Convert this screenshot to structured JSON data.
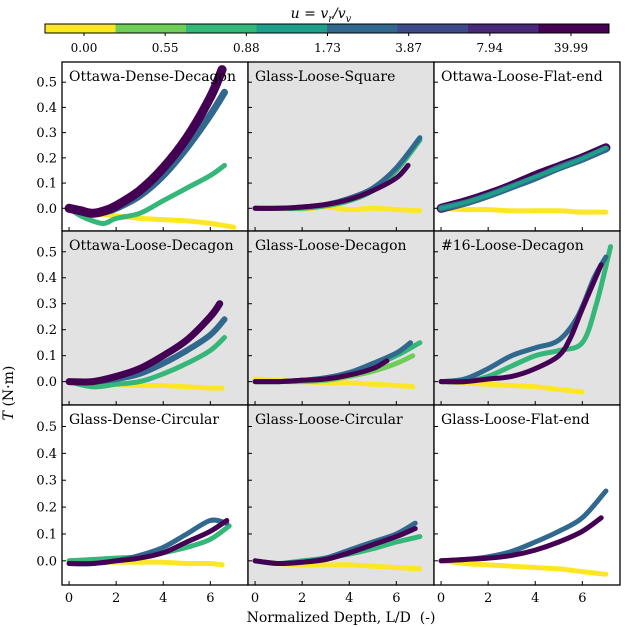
{
  "colorbar": {
    "label": "u = v_r / v_v",
    "label_parts": {
      "base": "u = v",
      "sub1": "r",
      "slash": "/v",
      "sub2": "v"
    },
    "ticks": [
      "0.00",
      "0.55",
      "0.88",
      "1.73",
      "3.87",
      "7.94",
      "39.99"
    ],
    "colors": [
      "#fde725",
      "#6ece58",
      "#35b779",
      "#1f9e89",
      "#31688e",
      "#3e4989",
      "#482878",
      "#440154"
    ]
  },
  "axes": {
    "ylabel": "T (N·m)",
    "ylabel_parts": {
      "sym": "T",
      "unit": " (N·m)"
    },
    "xlabel": "Normalized Depth, L/D  (-)",
    "xticks": [
      "0",
      "2",
      "4",
      "6"
    ],
    "yticks": [
      "0.0",
      "0.1",
      "0.2",
      "0.3",
      "0.4",
      "0.5"
    ],
    "xlim": [
      -0.3,
      7.6
    ],
    "ylim": [
      -0.09,
      0.58
    ]
  },
  "chart_data": {
    "type": "line",
    "xlabel": "Normalized Depth, L/D  (-)",
    "ylabel": "T (N·m)",
    "colorbar_label": "u = v_r/v_v",
    "panels": [
      {
        "title": "Ottawa-Dense-Decagon",
        "shaded": false,
        "series": [
          {
            "name": "u=0.00",
            "color": "#fde725",
            "thick": 5,
            "x": [
              0,
              1,
              2,
              3,
              4,
              5,
              6,
              7
            ],
            "y": [
              0.0,
              -0.02,
              -0.03,
              -0.04,
              -0.045,
              -0.05,
              -0.06,
              -0.075
            ]
          },
          {
            "name": "u=0.88",
            "color": "#35b779",
            "thick": 5,
            "x": [
              0,
              0.5,
              1,
              1.5,
              2,
              3,
              4,
              5,
              6,
              6.6
            ],
            "y": [
              0.0,
              -0.03,
              -0.05,
              -0.06,
              -0.04,
              -0.02,
              0.03,
              0.08,
              0.13,
              0.17
            ]
          },
          {
            "name": "u=3.87",
            "color": "#31688e",
            "thick": 7,
            "x": [
              0,
              0.5,
              1,
              1.5,
              2,
              3,
              4,
              5,
              6,
              6.6
            ],
            "y": [
              0.0,
              -0.01,
              -0.02,
              -0.015,
              0.0,
              0.05,
              0.13,
              0.24,
              0.37,
              0.46
            ]
          },
          {
            "name": "u=39.99",
            "color": "#440154",
            "thick": 9,
            "x": [
              0,
              0.5,
              1,
              1.5,
              2,
              3,
              4,
              5,
              6,
              6.5
            ],
            "y": [
              0.0,
              -0.01,
              -0.02,
              -0.01,
              0.01,
              0.07,
              0.16,
              0.28,
              0.44,
              0.55
            ]
          }
        ]
      },
      {
        "title": "Glass-Loose-Square",
        "shaded": true,
        "series": [
          {
            "name": "u=0.00",
            "color": "#fde725",
            "thick": 5,
            "x": [
              0,
              1,
              2,
              3,
              4,
              5,
              6,
              7
            ],
            "y": [
              0.0,
              0.0,
              -0.005,
              0.005,
              -0.005,
              0.0,
              -0.005,
              -0.01
            ]
          },
          {
            "name": "u=0.88",
            "color": "#35b779",
            "thick": 5,
            "x": [
              0,
              1,
              2,
              3,
              4,
              5,
              6,
              7
            ],
            "y": [
              0.0,
              0.0,
              0.0,
              0.01,
              0.03,
              0.07,
              0.15,
              0.27
            ]
          },
          {
            "name": "u=3.87",
            "color": "#31688e",
            "thick": 5,
            "x": [
              0,
              1,
              2,
              3,
              4,
              5,
              6,
              7
            ],
            "y": [
              0.0,
              0.0,
              0.005,
              0.015,
              0.04,
              0.08,
              0.16,
              0.28
            ]
          },
          {
            "name": "u=39.99",
            "color": "#440154",
            "thick": 5,
            "x": [
              0,
              1,
              2,
              3,
              4,
              5,
              6,
              6.5
            ],
            "y": [
              0.0,
              0.0,
              0.005,
              0.015,
              0.035,
              0.07,
              0.12,
              0.17
            ]
          }
        ]
      },
      {
        "title": "Ottawa-Loose-Flat-end",
        "shaded": false,
        "series": [
          {
            "name": "u=0.00",
            "color": "#fde725",
            "thick": 5,
            "x": [
              0,
              1,
              2,
              3,
              4,
              5,
              6,
              7
            ],
            "y": [
              0.0,
              -0.005,
              -0.005,
              -0.01,
              -0.01,
              -0.01,
              -0.015,
              -0.015
            ]
          },
          {
            "name": "u=39.99",
            "color": "#440154",
            "thick": 9,
            "x": [
              0,
              1,
              2,
              3,
              4,
              5,
              6,
              7
            ],
            "y": [
              0.0,
              0.025,
              0.055,
              0.09,
              0.13,
              0.165,
              0.2,
              0.24
            ]
          },
          {
            "name": "u=3.87",
            "color": "#31688e",
            "thick": 7,
            "x": [
              0,
              1,
              2,
              3,
              4,
              5,
              6,
              7
            ],
            "y": [
              0.0,
              0.02,
              0.05,
              0.085,
              0.12,
              0.16,
              0.195,
              0.235
            ]
          },
          {
            "name": "u=1.73",
            "color": "#1f9e89",
            "thick": 4,
            "x": [
              0,
              1,
              2,
              3,
              4,
              5,
              6,
              7
            ],
            "y": [
              0.0,
              0.022,
              0.052,
              0.087,
              0.125,
              0.16,
              0.197,
              0.24
            ]
          }
        ]
      },
      {
        "title": "Ottawa-Loose-Decagon",
        "shaded": true,
        "series": [
          {
            "name": "u=0.00",
            "color": "#fde725",
            "thick": 5,
            "x": [
              0,
              1,
              2,
              3,
              4,
              5,
              6,
              6.5
            ],
            "y": [
              0.0,
              -0.005,
              -0.01,
              -0.015,
              -0.015,
              -0.02,
              -0.025,
              -0.025
            ]
          },
          {
            "name": "u=0.88",
            "color": "#35b779",
            "thick": 5,
            "x": [
              0,
              1,
              2,
              3,
              4,
              5,
              6,
              6.6
            ],
            "y": [
              0.0,
              -0.02,
              -0.01,
              0.0,
              0.03,
              0.07,
              0.12,
              0.17
            ]
          },
          {
            "name": "u=3.87",
            "color": "#31688e",
            "thick": 6,
            "x": [
              0,
              1,
              2,
              3,
              4,
              5,
              6,
              6.6
            ],
            "y": [
              0.0,
              0.0,
              0.01,
              0.03,
              0.07,
              0.12,
              0.18,
              0.24
            ]
          },
          {
            "name": "u=39.99",
            "color": "#440154",
            "thick": 7,
            "x": [
              0,
              1,
              2,
              3,
              4,
              5,
              6,
              6.4
            ],
            "y": [
              0.0,
              0.0,
              0.02,
              0.05,
              0.1,
              0.16,
              0.25,
              0.3
            ]
          }
        ]
      },
      {
        "title": "Glass-Loose-Decagon",
        "shaded": true,
        "series": [
          {
            "name": "u=0.00",
            "color": "#fde725",
            "thick": 5,
            "x": [
              0,
              1,
              2,
              3,
              4,
              5,
              6,
              6.7
            ],
            "y": [
              0.01,
              0.005,
              0.0,
              -0.005,
              -0.005,
              -0.01,
              -0.015,
              -0.02
            ]
          },
          {
            "name": "u=0.55",
            "color": "#6ece58",
            "thick": 5,
            "x": [
              0,
              1,
              2,
              3,
              4,
              5,
              6,
              6.7
            ],
            "y": [
              0.0,
              0.0,
              0.0,
              0.005,
              0.02,
              0.04,
              0.07,
              0.1
            ]
          },
          {
            "name": "u=0.88",
            "color": "#35b779",
            "thick": 5,
            "x": [
              0,
              1,
              2,
              3,
              4,
              5,
              6,
              7
            ],
            "y": [
              0.0,
              0.0,
              0.005,
              0.015,
              0.03,
              0.06,
              0.1,
              0.15
            ]
          },
          {
            "name": "u=3.87",
            "color": "#31688e",
            "thick": 5,
            "x": [
              0,
              1,
              2,
              3,
              4,
              5,
              6,
              6.6
            ],
            "y": [
              0.0,
              0.0,
              0.005,
              0.015,
              0.035,
              0.07,
              0.11,
              0.15
            ]
          },
          {
            "name": "u=39.99",
            "color": "#440154",
            "thick": 5,
            "x": [
              0,
              1,
              2,
              3,
              4,
              5,
              5.6
            ],
            "y": [
              0.0,
              0.0,
              0.005,
              0.01,
              0.025,
              0.05,
              0.08
            ]
          }
        ]
      },
      {
        "title": "#16-Loose-Decagon",
        "shaded": true,
        "series": [
          {
            "name": "u=0.00",
            "color": "#fde725",
            "thick": 5,
            "x": [
              0,
              1,
              2,
              3,
              4,
              5,
              6
            ],
            "y": [
              0.0,
              -0.005,
              -0.01,
              -0.015,
              -0.02,
              -0.03,
              -0.04
            ]
          },
          {
            "name": "u=0.88",
            "color": "#35b779",
            "thick": 5,
            "x": [
              0,
              1,
              2,
              3,
              4,
              5,
              6,
              6.6,
              7.2
            ],
            "y": [
              0.0,
              0.0,
              0.02,
              0.06,
              0.1,
              0.12,
              0.15,
              0.3,
              0.52
            ]
          },
          {
            "name": "u=3.87",
            "color": "#31688e",
            "thick": 5,
            "x": [
              0,
              1,
              2,
              3,
              4,
              5,
              5.8,
              6.5,
              7.0
            ],
            "y": [
              0.0,
              0.01,
              0.05,
              0.1,
              0.13,
              0.16,
              0.25,
              0.4,
              0.48
            ]
          },
          {
            "name": "u=39.99",
            "color": "#440154",
            "thick": 5,
            "x": [
              0,
              1,
              2,
              3,
              4,
              5,
              5.5,
              6.0,
              6.8
            ],
            "y": [
              0.0,
              0.0,
              0.01,
              0.02,
              0.05,
              0.1,
              0.17,
              0.28,
              0.45
            ]
          }
        ]
      },
      {
        "title": "Glass-Dense-Circular",
        "shaded": false,
        "series": [
          {
            "name": "u=0.00",
            "color": "#fde725",
            "thick": 5,
            "x": [
              0,
              1,
              2,
              3,
              4,
              5,
              6,
              6.5
            ],
            "y": [
              0.0,
              -0.005,
              -0.005,
              -0.005,
              -0.005,
              -0.01,
              -0.01,
              -0.015
            ]
          },
          {
            "name": "u=0.88",
            "color": "#35b779",
            "thick": 5,
            "x": [
              0,
              1,
              2,
              3,
              4,
              5,
              6,
              6.8
            ],
            "y": [
              0.0,
              0.005,
              0.01,
              0.015,
              0.03,
              0.05,
              0.08,
              0.13
            ]
          },
          {
            "name": "u=3.87",
            "color": "#31688e",
            "thick": 5,
            "x": [
              0,
              1,
              2,
              3,
              4,
              5,
              6,
              6.7
            ],
            "y": [
              -0.01,
              -0.01,
              0.0,
              0.02,
              0.05,
              0.1,
              0.15,
              0.14
            ]
          },
          {
            "name": "u=39.99",
            "color": "#440154",
            "thick": 5,
            "x": [
              0,
              1,
              2,
              3,
              4,
              5,
              6,
              6.7
            ],
            "y": [
              -0.01,
              -0.01,
              0.0,
              0.01,
              0.03,
              0.07,
              0.11,
              0.15
            ]
          }
        ]
      },
      {
        "title": "Glass-Loose-Circular",
        "shaded": true,
        "series": [
          {
            "name": "u=0.00",
            "color": "#fde725",
            "thick": 5,
            "x": [
              0,
              1,
              2,
              3,
              4,
              5,
              6,
              7
            ],
            "y": [
              0.0,
              -0.01,
              -0.015,
              -0.015,
              -0.015,
              -0.02,
              -0.025,
              -0.03
            ]
          },
          {
            "name": "u=0.88",
            "color": "#35b779",
            "thick": 5,
            "x": [
              0,
              1,
              2,
              3,
              4,
              5,
              6,
              7
            ],
            "y": [
              0.0,
              -0.01,
              0.0,
              0.01,
              0.025,
              0.045,
              0.07,
              0.09
            ]
          },
          {
            "name": "u=3.87",
            "color": "#31688e",
            "thick": 5,
            "x": [
              0,
              1,
              2,
              3,
              4,
              5,
              6,
              6.8
            ],
            "y": [
              0.0,
              -0.01,
              -0.005,
              0.01,
              0.04,
              0.07,
              0.1,
              0.14
            ]
          },
          {
            "name": "u=39.99",
            "color": "#440154",
            "thick": 5,
            "x": [
              0,
              1,
              2,
              3,
              4,
              5,
              6,
              6.8
            ],
            "y": [
              0.0,
              -0.01,
              -0.005,
              0.005,
              0.03,
              0.06,
              0.09,
              0.12
            ]
          }
        ]
      },
      {
        "title": "Glass-Loose-Flat-end",
        "shaded": false,
        "series": [
          {
            "name": "u=0.00",
            "color": "#fde725",
            "thick": 5,
            "x": [
              0,
              1,
              2,
              3,
              4,
              5,
              6,
              7
            ],
            "y": [
              0.0,
              -0.01,
              -0.015,
              -0.02,
              -0.025,
              -0.03,
              -0.04,
              -0.05
            ]
          },
          {
            "name": "u=3.87",
            "color": "#31688e",
            "thick": 5,
            "x": [
              0,
              1,
              2,
              3,
              4,
              5,
              6,
              7
            ],
            "y": [
              0.0,
              0.005,
              0.015,
              0.035,
              0.07,
              0.11,
              0.16,
              0.26
            ]
          },
          {
            "name": "u=39.99",
            "color": "#440154",
            "thick": 5,
            "x": [
              0,
              1,
              2,
              3,
              4,
              5,
              6,
              6.8
            ],
            "y": [
              0.0,
              0.005,
              0.01,
              0.02,
              0.04,
              0.07,
              0.11,
              0.16
            ]
          }
        ]
      }
    ]
  }
}
